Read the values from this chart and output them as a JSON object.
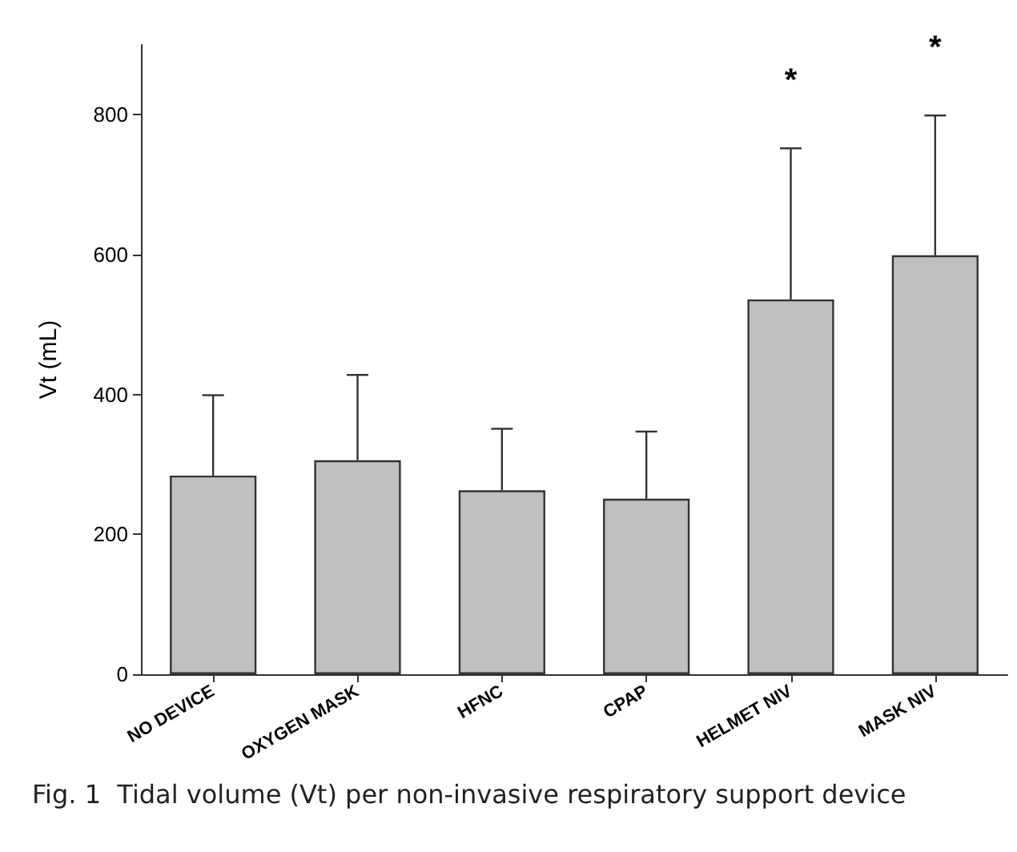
{
  "chart_data": {
    "type": "bar",
    "ylabel": "Vt (mL)",
    "categories": [
      "NO DEVICE",
      "OXYGEN MASK",
      "HFNC",
      "CPAP",
      "HELMET NIV",
      "MASK NIV"
    ],
    "values": [
      284,
      306,
      263,
      251,
      536,
      599
    ],
    "errors": [
      [
        284,
        399
      ],
      [
        306,
        428
      ],
      [
        263,
        351
      ],
      [
        251,
        347
      ],
      [
        536,
        752
      ],
      [
        599,
        799
      ]
    ],
    "color": "#c0c0c0",
    "ylim": [
      0,
      900
    ],
    "yticks": [
      0,
      200,
      400,
      600,
      800
    ],
    "grid": false,
    "annotations": [
      {
        "text": "*",
        "x": "HELMET NIV",
        "y": 752
      },
      {
        "text": "*",
        "x": "MASK NIV",
        "y": 799
      },
      "Fig. 1  Tidal volume (Vt) per non-invasive respiratory support device"
    ]
  }
}
